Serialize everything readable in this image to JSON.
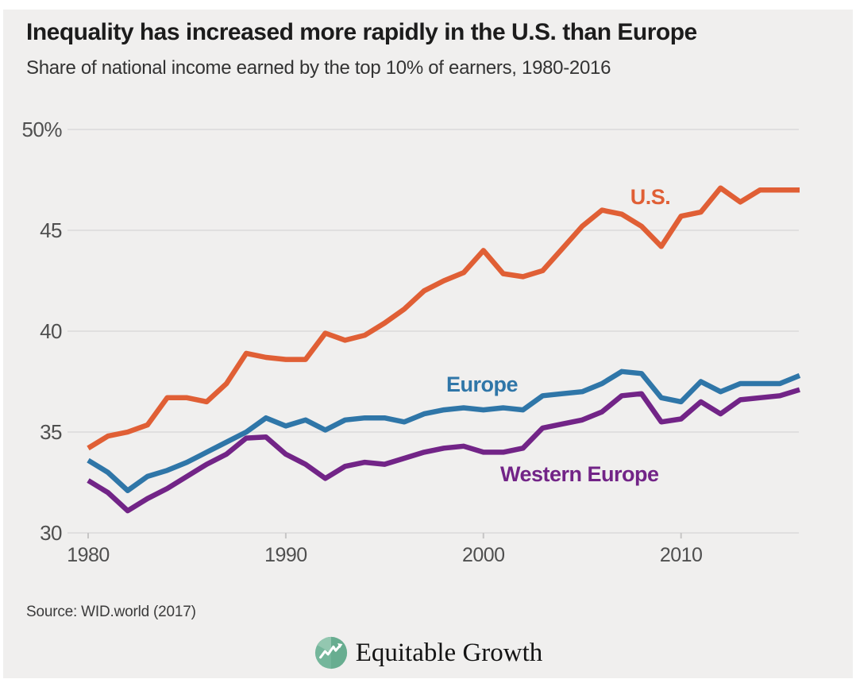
{
  "header": {
    "title": "Inequality has increased more rapidly in the U.S. than Europe",
    "subtitle": "Share of national income earned by the top 10% of earners, 1980-2016"
  },
  "chart_data": {
    "type": "line",
    "x_start": 1980,
    "x_end": 2016,
    "x_ticks": [
      1980,
      1990,
      2000,
      2010
    ],
    "y_ticks": [
      30,
      35,
      40,
      45,
      50
    ],
    "y_tick_labels": [
      "30",
      "35",
      "40",
      "45",
      "50%"
    ],
    "ylim": [
      30,
      50
    ],
    "grid": "horizontal gridlines on",
    "legend_position": "inline labels next to lines",
    "background_color": "#f0efee",
    "gridline_color": "#dbdada",
    "axis_text_color": "#4f4f4f",
    "years": [
      1980,
      1981,
      1982,
      1983,
      1984,
      1985,
      1986,
      1987,
      1988,
      1989,
      1990,
      1991,
      1992,
      1993,
      1994,
      1995,
      1996,
      1997,
      1998,
      1999,
      2000,
      2001,
      2002,
      2003,
      2004,
      2005,
      2006,
      2007,
      2008,
      2009,
      2010,
      2011,
      2012,
      2013,
      2014,
      2015,
      2016
    ],
    "series": [
      {
        "name": "U.S.",
        "color": "#e05f35",
        "values": [
          34.2,
          34.8,
          35.0,
          35.35,
          36.7,
          36.7,
          36.5,
          37.4,
          38.9,
          38.7,
          38.6,
          38.6,
          39.9,
          39.55,
          39.8,
          40.4,
          41.1,
          42.0,
          42.5,
          42.9,
          44.0,
          42.85,
          42.7,
          43.0,
          44.1,
          45.2,
          46.0,
          45.8,
          45.2,
          44.2,
          45.7,
          45.9,
          47.1,
          46.4,
          47.0,
          47.0,
          47.0
        ]
      },
      {
        "name": "Europe",
        "color": "#2f76a8",
        "values": [
          33.6,
          33.0,
          32.1,
          32.8,
          33.1,
          33.5,
          34.0,
          34.5,
          35.0,
          35.7,
          35.3,
          35.6,
          35.1,
          35.6,
          35.7,
          35.7,
          35.5,
          35.9,
          36.1,
          36.2,
          36.1,
          36.2,
          36.1,
          36.8,
          36.9,
          37.0,
          37.4,
          38.0,
          37.9,
          36.7,
          36.5,
          37.5,
          37.0,
          37.4,
          37.4,
          37.4,
          37.8
        ]
      },
      {
        "name": "Western Europe",
        "color": "#722487",
        "values": [
          32.6,
          32.0,
          31.1,
          31.7,
          32.2,
          32.8,
          33.4,
          33.9,
          34.7,
          34.75,
          33.9,
          33.4,
          32.7,
          33.3,
          33.5,
          33.4,
          33.7,
          34.0,
          34.2,
          34.3,
          34.0,
          34.0,
          34.2,
          35.2,
          35.4,
          35.6,
          36.0,
          36.8,
          36.9,
          35.5,
          35.65,
          36.5,
          35.9,
          36.6,
          36.7,
          36.8,
          37.1
        ]
      }
    ]
  },
  "footer": {
    "source": "Source: WID.world (2017)"
  },
  "logo": {
    "text": "Equitable Growth",
    "mark_color": "#74b69b",
    "mark_light_color": "#93c7b0",
    "mark_dark_color": "#5fa687"
  }
}
